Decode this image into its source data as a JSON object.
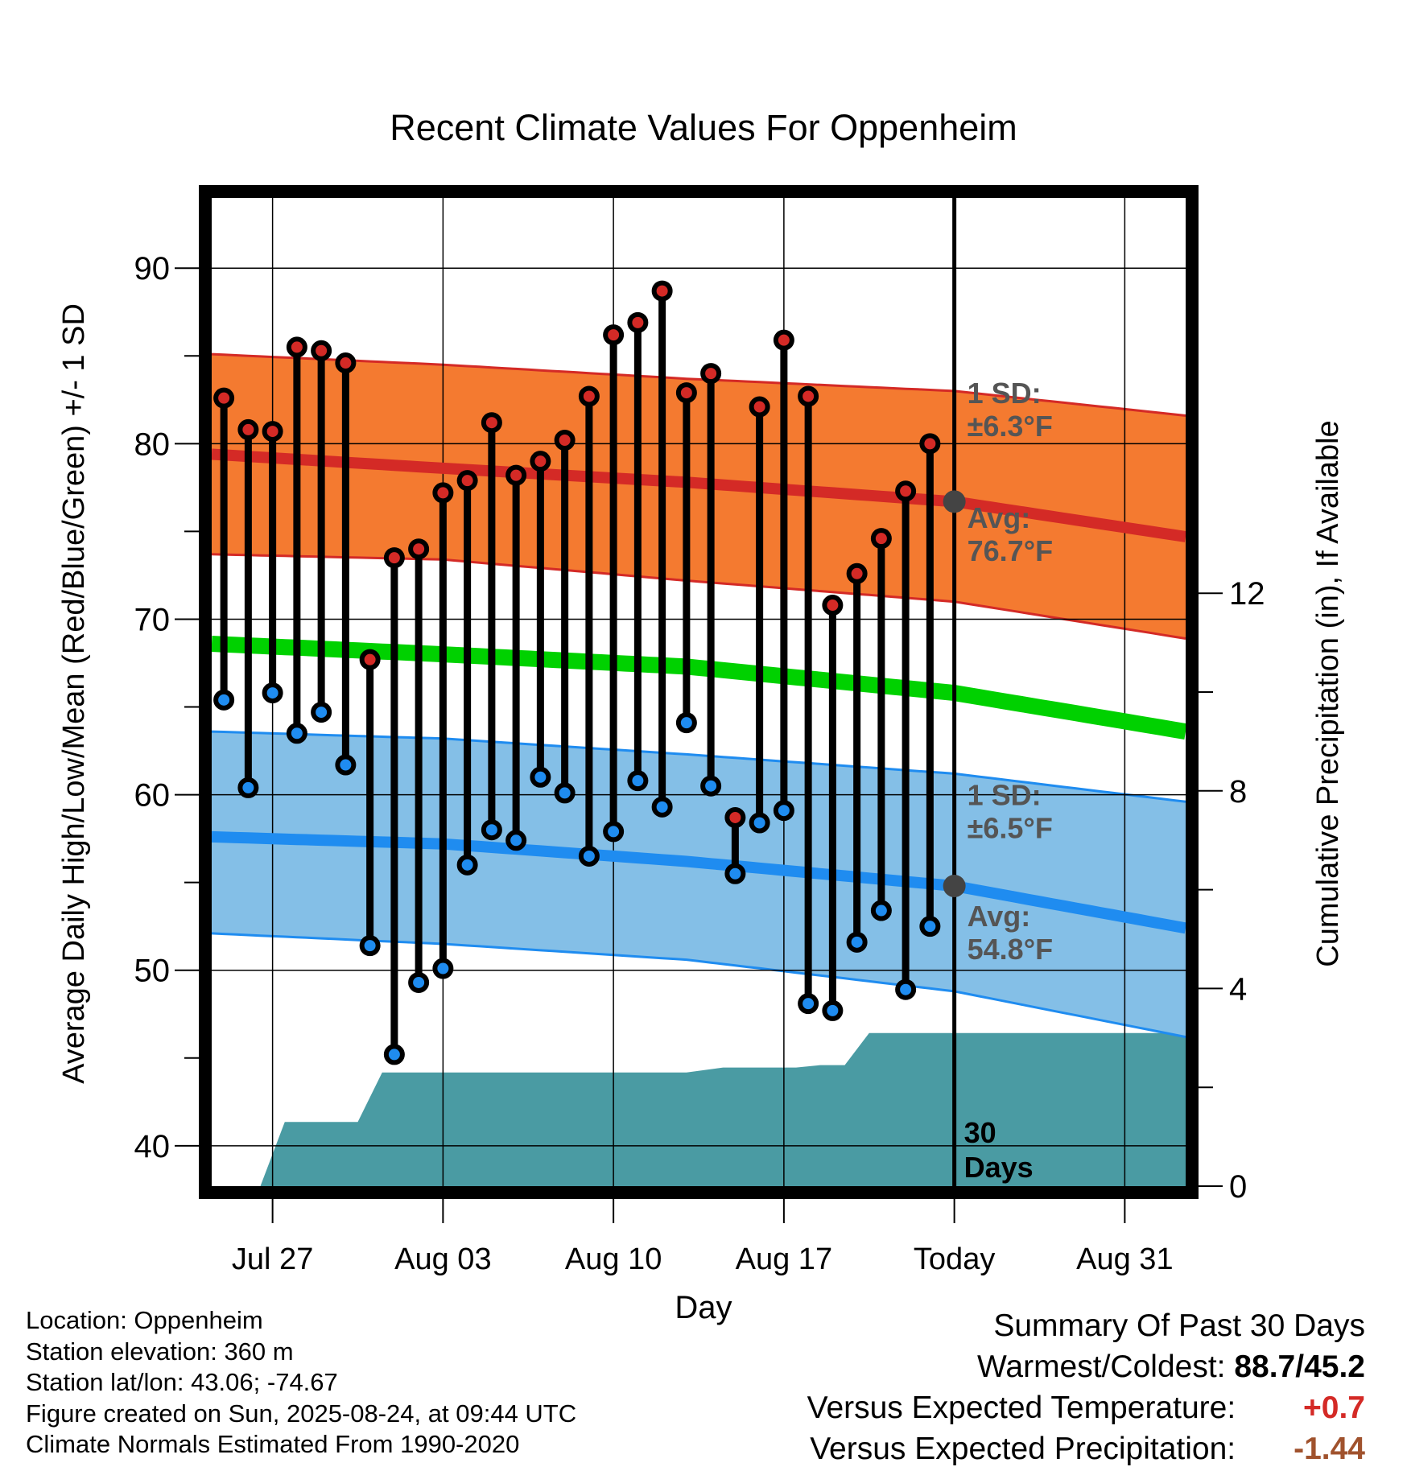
{
  "chart_data": {
    "type": "line",
    "title": "Recent Climate Values For Oppenheim",
    "xlabel": "Day",
    "ylabel": "Average Daily High/Low/Mean (Red/Blue/Green) +/- 1 SD",
    "y2label": "Cumulative Precipitation (in), If Available",
    "ylim": [
      37.7,
      94
    ],
    "y2lim": [
      0,
      20
    ],
    "x_tick_labels": [
      "Jul 27",
      "Aug 03",
      "Aug 10",
      "Aug 17",
      "Today",
      "Aug 31"
    ],
    "x_tick_days": [
      3,
      10,
      17,
      24,
      31,
      38
    ],
    "y_ticks": [
      40,
      50,
      60,
      70,
      80,
      90
    ],
    "y2_ticks": [
      0,
      4,
      8,
      12
    ],
    "today_day": 31,
    "x_range_days": [
      0.5,
      40.5
    ],
    "days": [
      1,
      2,
      3,
      4,
      5,
      6,
      7,
      8,
      9,
      10,
      11,
      12,
      13,
      14,
      15,
      16,
      17,
      18,
      19,
      20,
      21,
      22,
      23,
      24,
      25,
      26,
      27,
      28,
      29,
      30
    ],
    "series": [
      {
        "name": "High",
        "values": [
          82.6,
          80.8,
          80.7,
          85.5,
          85.3,
          84.6,
          67.7,
          73.5,
          74.0,
          77.2,
          77.9,
          81.2,
          78.2,
          79.0,
          80.2,
          82.7,
          86.2,
          86.9,
          88.7,
          82.9,
          84.0,
          82.1,
          85.9,
          82.7,
          70.8,
          72.6,
          74.6,
          77.3,
          80.0
        ]
      },
      {
        "name": "Low",
        "values": [
          65.4,
          60.4,
          65.8,
          63.5,
          64.7,
          61.7,
          51.4,
          45.2,
          49.3,
          50.1,
          56.0,
          58.0,
          57.4,
          61.0,
          60.1,
          56.5,
          57.9,
          60.8,
          59.3,
          64.1,
          60.5,
          55.5,
          58.4,
          59.1,
          48.1,
          47.7,
          51.6,
          53.4,
          48.9,
          52.5
        ]
      }
    ],
    "high_values_with_gap_note": "29 highs correspond to days 1-21 and 23-30; day 22 high 58.7",
    "normals": {
      "day": [
        0.5,
        10,
        20,
        31,
        40.5
      ],
      "high_mean": [
        79.4,
        78.6,
        77.8,
        76.7,
        74.7
      ],
      "high_upper": [
        85.1,
        84.5,
        83.7,
        83.0,
        81.6
      ],
      "high_lower": [
        73.7,
        73.4,
        72.2,
        71.0,
        68.9
      ],
      "low_mean": [
        57.6,
        57.2,
        56.2,
        54.8,
        52.4
      ],
      "low_upper": [
        63.6,
        63.2,
        62.3,
        61.2,
        59.6
      ],
      "low_lower": [
        52.1,
        51.5,
        50.6,
        48.8,
        46.2
      ],
      "avg_mean": [
        68.6,
        68.0,
        67.3,
        65.8,
        63.6
      ]
    },
    "precip_cumulative": {
      "day": [
        2.5,
        3.5,
        6.5,
        7.5,
        20,
        21.5,
        24.5,
        25.5,
        26.5,
        27.5,
        40.5
      ],
      "value": [
        0,
        1.3,
        1.3,
        2.3,
        2.3,
        2.4,
        2.4,
        2.45,
        2.45,
        3.1,
        3.1
      ]
    },
    "colors": {
      "high_band": "#f47a30",
      "high_mean_line": "#d42a26",
      "low_band": "#84bfe7",
      "low_mean_line": "#1f8cf0",
      "avg_line": "#00d100",
      "precip": "#4a9ba3",
      "high_marker": "#d42a26",
      "low_marker": "#1f8cf0",
      "annotation": "#555555"
    },
    "annotations": {
      "high_sd": [
        "1 SD:",
        "±6.3°F"
      ],
      "high_avg": [
        "Avg:",
        "76.7°F"
      ],
      "low_sd": [
        "1 SD:",
        "±6.5°F"
      ],
      "low_avg": [
        "Avg:",
        "54.8°F"
      ],
      "days_label": [
        "30",
        "Days"
      ]
    }
  },
  "footer": {
    "location": "Location: Oppenheim",
    "elevation": "Station elevation: 360 m",
    "latlon": "Station lat/lon: 43.06; -74.67",
    "created": "Figure created on Sun, 2025-08-24, at 09:44 UTC",
    "normals": "Climate Normals Estimated From 1990-2020"
  },
  "summary": {
    "title": "Summary Of Past 30 Days",
    "warm_cold_label": "Warmest/Coldest:",
    "warm_cold_value": "88.7/45.2",
    "temp_label": "Versus Expected Temperature:",
    "temp_value": "+0.7",
    "temp_color": "#d42a26",
    "precip_label": "Versus Expected Precipitation:",
    "precip_value": "-1.44",
    "precip_color": "#a0522d"
  }
}
